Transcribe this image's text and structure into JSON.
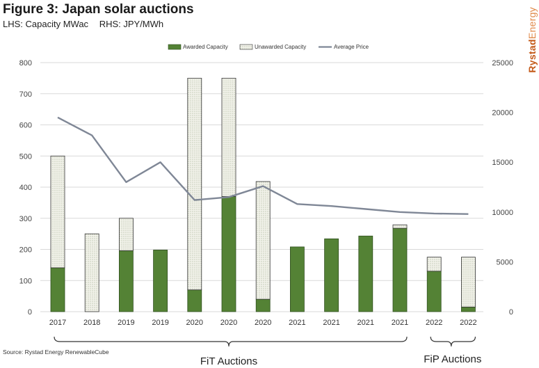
{
  "header": {
    "title": "Figure 3: Japan solar auctions",
    "subtitle_lhs": "LHS: Capacity MWac",
    "subtitle_rhs": "RHS: JPY/MWh"
  },
  "brand": {
    "name_bold": "Rystad",
    "name_light": "Energy"
  },
  "footer": {
    "source": "Source: Rystad Energy RenewableCube"
  },
  "colors": {
    "awarded": "#548235",
    "unawarded_bg": "#f2f2ea",
    "line": "#7f8796",
    "grid": "#d9d9d9"
  },
  "chart_data": {
    "type": "bar",
    "categories": [
      "2017",
      "2018",
      "2019",
      "2019",
      "2020",
      "2020",
      "2020",
      "2021",
      "2021",
      "2021",
      "2021",
      "2022",
      "2022"
    ],
    "series": [
      {
        "name": "Awarded Capacity",
        "type": "bar",
        "axis": "left",
        "values": [
          141,
          0,
          196,
          198,
          70,
          370,
          40,
          208,
          234,
          243,
          268,
          130,
          15
        ]
      },
      {
        "name": "Unawarded Capacity",
        "type": "bar",
        "axis": "left",
        "values": [
          359,
          250,
          104,
          0,
          680,
          380,
          378,
          0,
          0,
          0,
          11,
          45,
          160
        ]
      },
      {
        "name": "Average Price",
        "type": "line",
        "axis": "right",
        "values": [
          19500,
          17700,
          13000,
          15000,
          11200,
          11500,
          12600,
          10800,
          10600,
          10300,
          10000,
          9850,
          9800
        ]
      }
    ],
    "left_axis": {
      "min": 0,
      "max": 800,
      "step": 100,
      "ticks": [
        "0",
        "100",
        "200",
        "300",
        "400",
        "500",
        "600",
        "700",
        "800"
      ]
    },
    "right_axis": {
      "min": 0,
      "max": 25000,
      "step": 5000,
      "ticks": [
        "0",
        "5000",
        "10000",
        "15000",
        "20000",
        "25000"
      ]
    },
    "groups": [
      {
        "label": "FiT Auctions",
        "from": 0,
        "to": 10
      },
      {
        "label": "FiP Auctions",
        "from": 11,
        "to": 12
      }
    ],
    "legend_position": "top",
    "grid": true
  }
}
